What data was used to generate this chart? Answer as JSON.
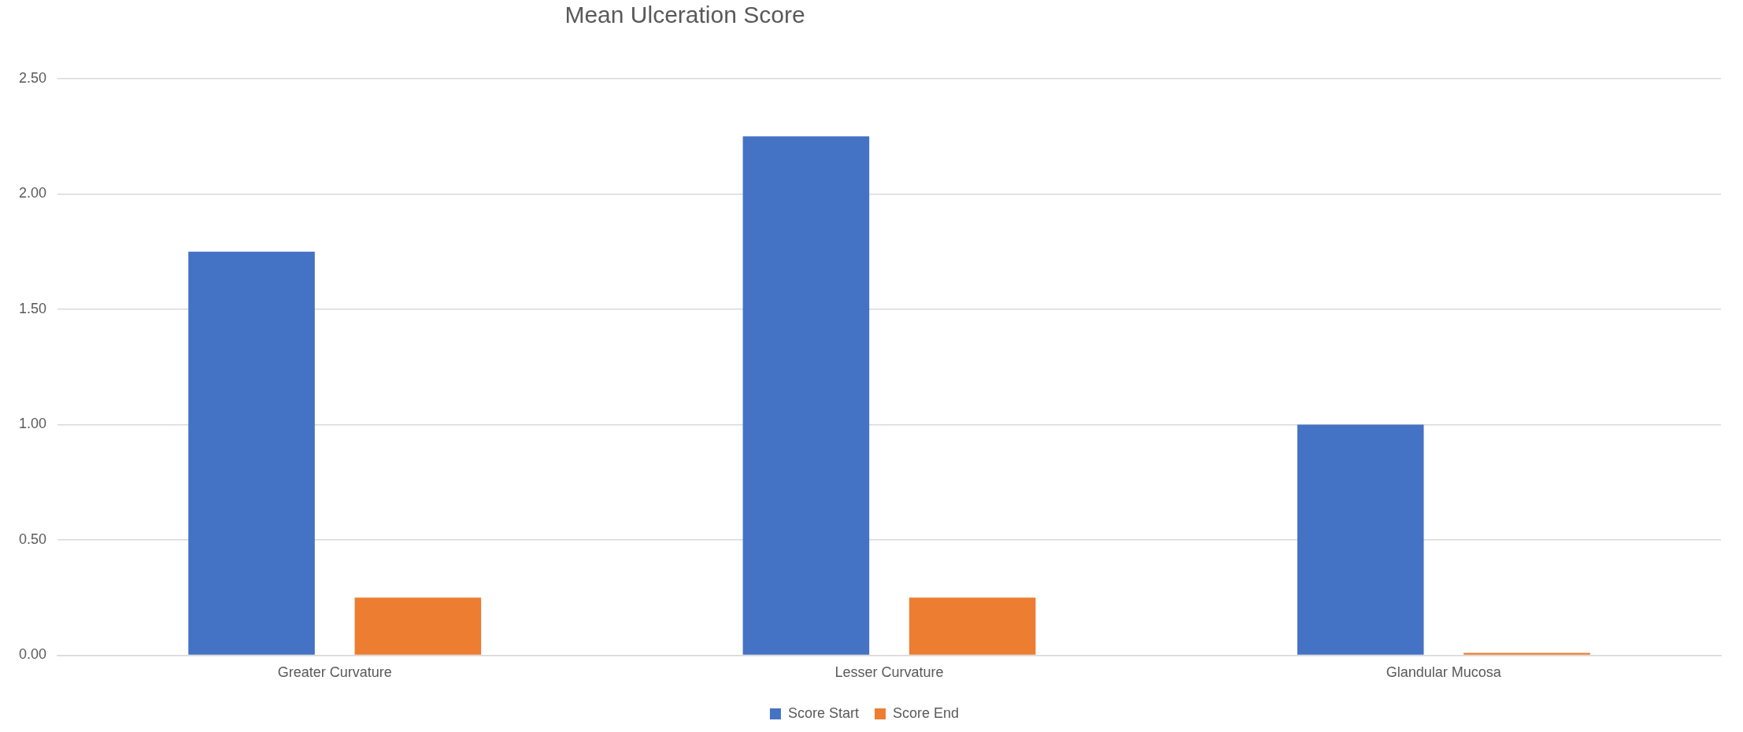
{
  "chart_data": {
    "type": "bar",
    "title": "Mean Ulceration Score",
    "categories": [
      "Greater Curvature",
      "Lesser Curvature",
      "Glandular Mucosa"
    ],
    "series": [
      {
        "name": "Score Start",
        "color": "#4472c4",
        "values": [
          1.75,
          2.25,
          1.0
        ]
      },
      {
        "name": "Score End",
        "color": "#ed7d31",
        "values": [
          0.25,
          0.25,
          0.01
        ]
      }
    ],
    "ylim": [
      0,
      2.5
    ],
    "yticks": [
      {
        "value": 0,
        "label": "0.00"
      },
      {
        "value": 0.5,
        "label": "0.50"
      },
      {
        "value": 1,
        "label": "1.00"
      },
      {
        "value": 1.5,
        "label": "1.50"
      },
      {
        "value": 2,
        "label": "2.00"
      },
      {
        "value": 2.5,
        "label": "2.50"
      }
    ],
    "grid": "y",
    "legend": "bottom"
  }
}
